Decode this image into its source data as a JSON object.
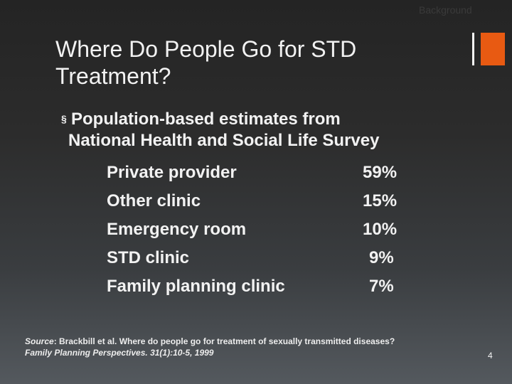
{
  "header": {
    "section_label": "Background",
    "accent_color": "#e85a12"
  },
  "title": {
    "line1": "Where Do People Go for STD",
    "line2": "Treatment?"
  },
  "bullet": {
    "marker": "§",
    "line1": "Population-based estimates from",
    "line2": "National Health and Social Life Survey"
  },
  "stats": [
    {
      "label": "Private provider",
      "value": "59%"
    },
    {
      "label": "Other clinic",
      "value": "15%"
    },
    {
      "label": "Emergency room",
      "value": "10%"
    },
    {
      "label": "STD clinic",
      "value": "9%"
    },
    {
      "label": "Family planning clinic",
      "value": "7%"
    }
  ],
  "source": {
    "label": "Source",
    "text": ": Brackbill et al. Where do people go for treatment of sexually transmitted diseases?",
    "journal": "Family Planning Perspectives. 31(1):10-5, 1999"
  },
  "footer": {
    "page_number": "4"
  }
}
